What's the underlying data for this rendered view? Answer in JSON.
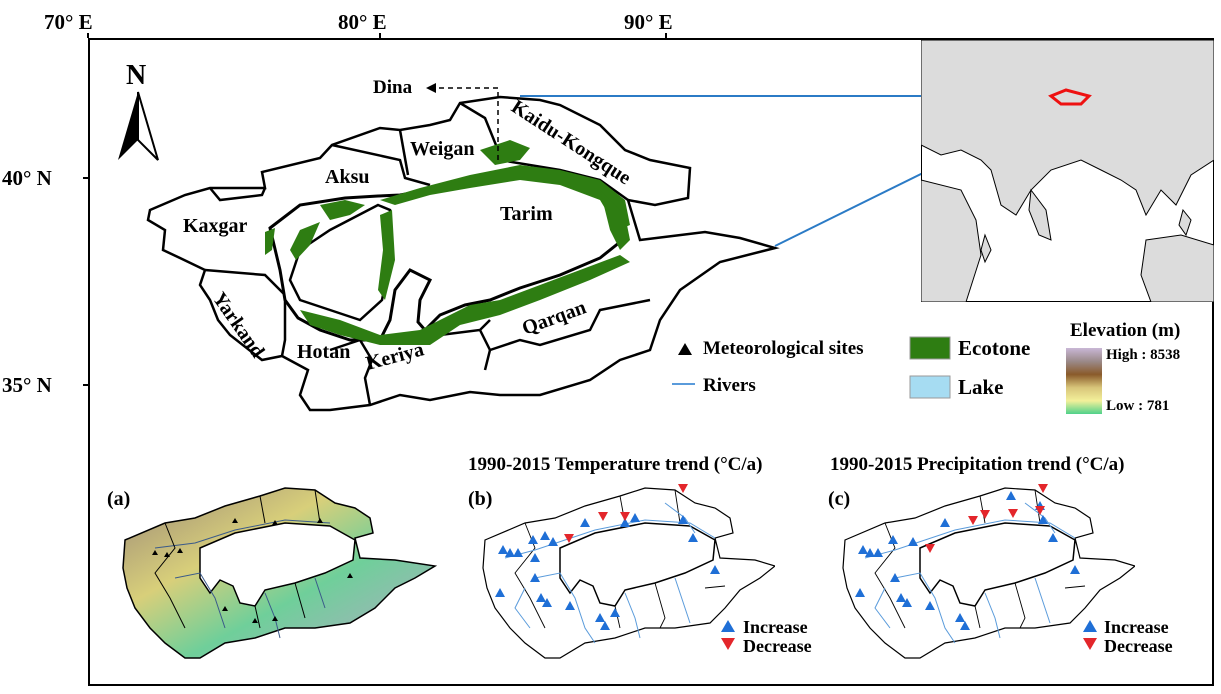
{
  "axes": {
    "longitude_labels": [
      "70° E",
      "80° E",
      "90° E"
    ],
    "latitude_labels": [
      "40° N",
      "35° N"
    ]
  },
  "north_arrow": "N",
  "basins": [
    "Kaxgar",
    "Aksu",
    "Weigan",
    "Kaidu-Kongque",
    "Tarim",
    "Yarkand",
    "Hotan",
    "Keriya",
    "Qarqan"
  ],
  "dina_label": "Dina",
  "legend": {
    "meteorological_sites": "Meteorological sites",
    "rivers": "Rivers",
    "ecotone": "Ecotone",
    "lake": "Lake",
    "elevation_title": "Elevation (m)",
    "elevation_high": "High : 8538",
    "elevation_low": "Low : 781"
  },
  "panels": {
    "a": {
      "label": "(a)"
    },
    "b": {
      "label": "(b)",
      "title": "1990-2015 Temperature trend  (°C/a)"
    },
    "c": {
      "label": "(c)",
      "title": "1990-2015 Precipitation trend  (°C/a)"
    }
  },
  "trend_legend": {
    "increase": "Increase",
    "decrease": "Decrease"
  },
  "colors": {
    "ecotone": "#2e7d12",
    "lake": "#a6dcf2",
    "river": "#5a9bdb",
    "increase": "#1f6fd6",
    "decrease": "#e3262b",
    "inset_highlight": "#ee1111",
    "inset_land": "#dcdcdc",
    "inset_water": "#ffffff",
    "connector": "#2b7bc6"
  }
}
